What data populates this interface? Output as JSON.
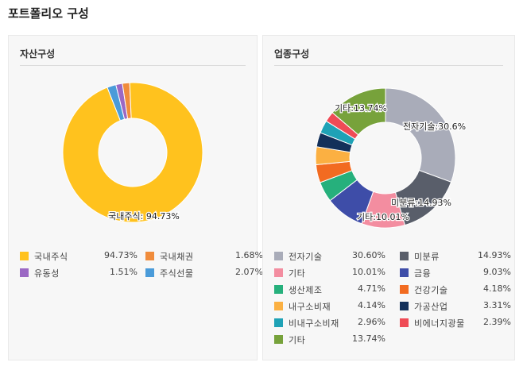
{
  "page": {
    "title": "포트폴리오 구성"
  },
  "asset": {
    "title": "자산구성",
    "chart_data": {
      "type": "pie",
      "donut": true,
      "slices": [
        {
          "label": "국내주식",
          "value": 94.73,
          "display": "94.73%",
          "color": "#FFC21E"
        },
        {
          "label": "국내채권",
          "value": 1.68,
          "display": "1.68%",
          "color": "#F08C3C"
        },
        {
          "label": "유동성",
          "value": 1.51,
          "display": "1.51%",
          "color": "#9B68C4"
        },
        {
          "label": "주식선물",
          "value": 2.07,
          "display": "2.07%",
          "color": "#4A9BD9"
        }
      ],
      "annotations": [
        {
          "text": "국내주식: 94.73%"
        }
      ],
      "legend_position": "bottom"
    }
  },
  "sector": {
    "title": "업종구성",
    "chart_data": {
      "type": "pie",
      "donut": true,
      "slices": [
        {
          "label": "전자기술",
          "value": 30.6,
          "display": "30.60%",
          "color": "#A9ACB9"
        },
        {
          "label": "미분류",
          "value": 14.93,
          "display": "14.93%",
          "color": "#595E6A"
        },
        {
          "label": "기타",
          "value": 10.01,
          "display": "10.01%",
          "color": "#F38DA0"
        },
        {
          "label": "금융",
          "value": 9.03,
          "display": "9.03%",
          "color": "#3E4DA8"
        },
        {
          "label": "생산제조",
          "value": 4.71,
          "display": "4.71%",
          "color": "#26B07C"
        },
        {
          "label": "건강기술",
          "value": 4.18,
          "display": "4.18%",
          "color": "#F26B21"
        },
        {
          "label": "내구소비재",
          "value": 4.14,
          "display": "4.14%",
          "color": "#FBB042"
        },
        {
          "label": "가공산업",
          "value": 3.31,
          "display": "3.31%",
          "color": "#13305A"
        },
        {
          "label": "비내구소비재",
          "value": 2.96,
          "display": "2.96%",
          "color": "#1FA2B6"
        },
        {
          "label": "비에너지광물",
          "value": 2.39,
          "display": "2.39%",
          "color": "#EF4B56"
        },
        {
          "label": "기타",
          "value": 13.74,
          "display": "13.74%",
          "color": "#77A23B"
        }
      ],
      "annotations": [
        {
          "text": "전자기술:30.6%"
        },
        {
          "text": "미분류:14.93%"
        },
        {
          "text": "기타:10.01%"
        },
        {
          "text": "기타:13.74%"
        }
      ],
      "legend_position": "bottom"
    }
  }
}
